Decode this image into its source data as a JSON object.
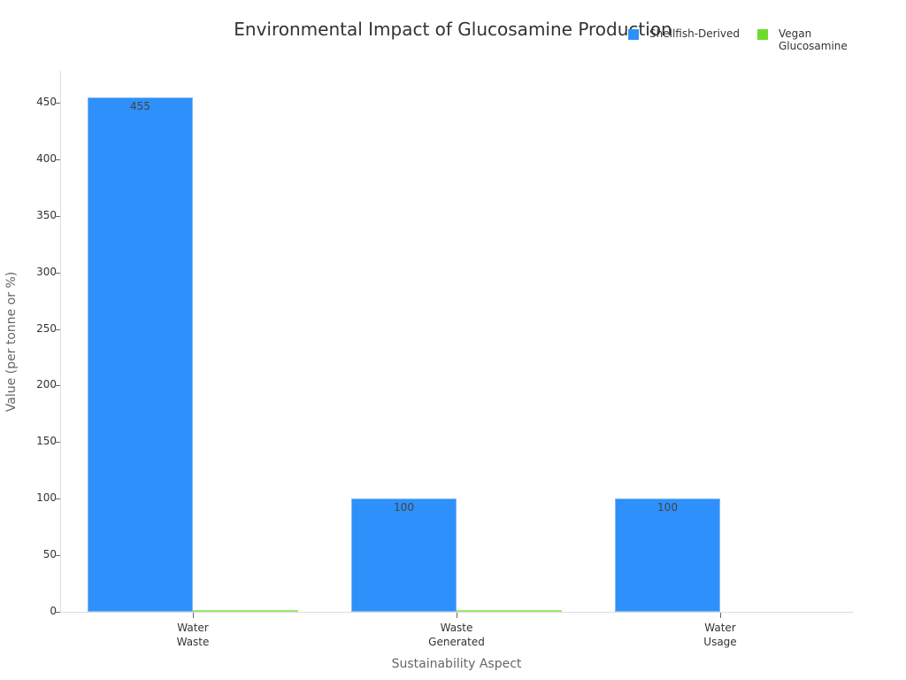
{
  "chart_data": {
    "type": "bar",
    "title": "Environmental Impact of Glucosamine Production",
    "xlabel": "Sustainability Aspect",
    "ylabel": "Value (per tonne or %)",
    "categories": [
      "Water Waste",
      "Waste Generated",
      "Water Usage"
    ],
    "category_lines": [
      [
        "Water",
        "Waste"
      ],
      [
        "Waste",
        "Generated"
      ],
      [
        "Water",
        "Usage"
      ]
    ],
    "series": [
      {
        "name": "Shellfish-Derived",
        "color": "#2E90FA",
        "values": [
          455,
          100,
          100
        ],
        "labels": [
          "455",
          "100",
          "100"
        ]
      },
      {
        "name": "Vegan Glucosamine",
        "color": "#6EDB2E",
        "values": [
          1.5,
          1.5,
          0
        ],
        "labels": [
          "",
          "",
          ""
        ]
      }
    ],
    "ylim": [
      0,
      470
    ],
    "yticks": [
      0,
      50,
      100,
      150,
      200,
      250,
      300,
      350,
      400,
      450
    ],
    "legend_position": "top-right",
    "grid": false
  },
  "legend": {
    "shellfish": "Shellfish-Derived",
    "vegan_line1": "Vegan",
    "vegan_line2": "Glucosamine"
  }
}
